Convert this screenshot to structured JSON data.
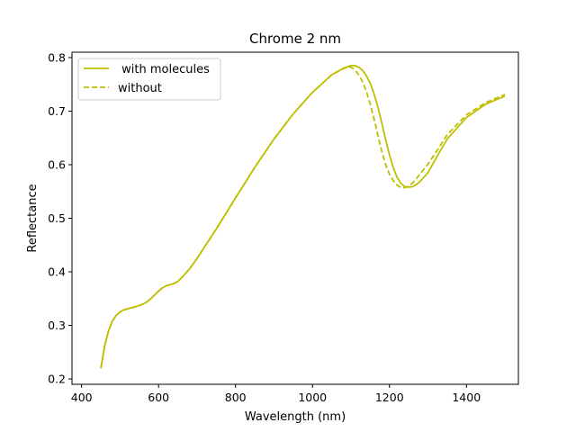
{
  "chart_data": {
    "type": "line",
    "title": "Chrome 2 nm",
    "xlabel": "Wavelength (nm)",
    "ylabel": "Reflectance",
    "xlim": [
      375,
      1535
    ],
    "ylim": [
      0.19,
      0.81
    ],
    "xticks": [
      400,
      600,
      800,
      1000,
      1200,
      1400
    ],
    "yticks": [
      0.2,
      0.3,
      0.4,
      0.5,
      0.6,
      0.7,
      0.8
    ],
    "grid": false,
    "legend_position": "upper-left",
    "series": [
      {
        "name": " with molecules",
        "style": "solid",
        "color": "#bfbf00",
        "x": [
          450,
          460,
          470,
          480,
          490,
          500,
          510,
          520,
          530,
          540,
          550,
          560,
          570,
          580,
          590,
          600,
          610,
          620,
          630,
          640,
          650,
          660,
          680,
          700,
          750,
          800,
          850,
          900,
          950,
          1000,
          1050,
          1080,
          1100,
          1110,
          1120,
          1130,
          1140,
          1150,
          1160,
          1170,
          1180,
          1190,
          1200,
          1210,
          1220,
          1230,
          1240,
          1250,
          1260,
          1270,
          1280,
          1290,
          1300,
          1325,
          1350,
          1400,
          1450,
          1500
        ],
        "y": [
          0.22,
          0.262,
          0.29,
          0.308,
          0.319,
          0.325,
          0.329,
          0.331,
          0.333,
          0.335,
          0.337,
          0.34,
          0.344,
          0.35,
          0.357,
          0.364,
          0.37,
          0.374,
          0.376,
          0.378,
          0.382,
          0.389,
          0.405,
          0.425,
          0.48,
          0.538,
          0.595,
          0.648,
          0.695,
          0.735,
          0.768,
          0.78,
          0.785,
          0.785,
          0.782,
          0.776,
          0.766,
          0.752,
          0.732,
          0.707,
          0.678,
          0.647,
          0.618,
          0.594,
          0.576,
          0.565,
          0.559,
          0.558,
          0.559,
          0.563,
          0.569,
          0.577,
          0.585,
          0.617,
          0.648,
          0.688,
          0.713,
          0.728
        ]
      },
      {
        "name": "without",
        "style": "dashed",
        "color": "#bfbf00",
        "x": [
          450,
          460,
          470,
          480,
          490,
          500,
          510,
          520,
          530,
          540,
          550,
          560,
          570,
          580,
          590,
          600,
          610,
          620,
          630,
          640,
          650,
          660,
          680,
          700,
          750,
          800,
          850,
          900,
          950,
          1000,
          1050,
          1080,
          1090,
          1100,
          1110,
          1120,
          1130,
          1140,
          1150,
          1160,
          1170,
          1180,
          1190,
          1200,
          1210,
          1220,
          1230,
          1240,
          1250,
          1260,
          1270,
          1280,
          1290,
          1300,
          1325,
          1350,
          1400,
          1450,
          1500
        ],
        "y": [
          0.22,
          0.262,
          0.29,
          0.308,
          0.319,
          0.325,
          0.329,
          0.331,
          0.333,
          0.335,
          0.337,
          0.34,
          0.344,
          0.35,
          0.357,
          0.364,
          0.37,
          0.374,
          0.376,
          0.378,
          0.382,
          0.389,
          0.405,
          0.425,
          0.48,
          0.538,
          0.595,
          0.648,
          0.695,
          0.735,
          0.768,
          0.779,
          0.782,
          0.782,
          0.777,
          0.768,
          0.755,
          0.737,
          0.713,
          0.685,
          0.655,
          0.625,
          0.6,
          0.582,
          0.57,
          0.562,
          0.557,
          0.557,
          0.56,
          0.566,
          0.574,
          0.583,
          0.592,
          0.601,
          0.628,
          0.656,
          0.693,
          0.716,
          0.731
        ]
      }
    ]
  }
}
